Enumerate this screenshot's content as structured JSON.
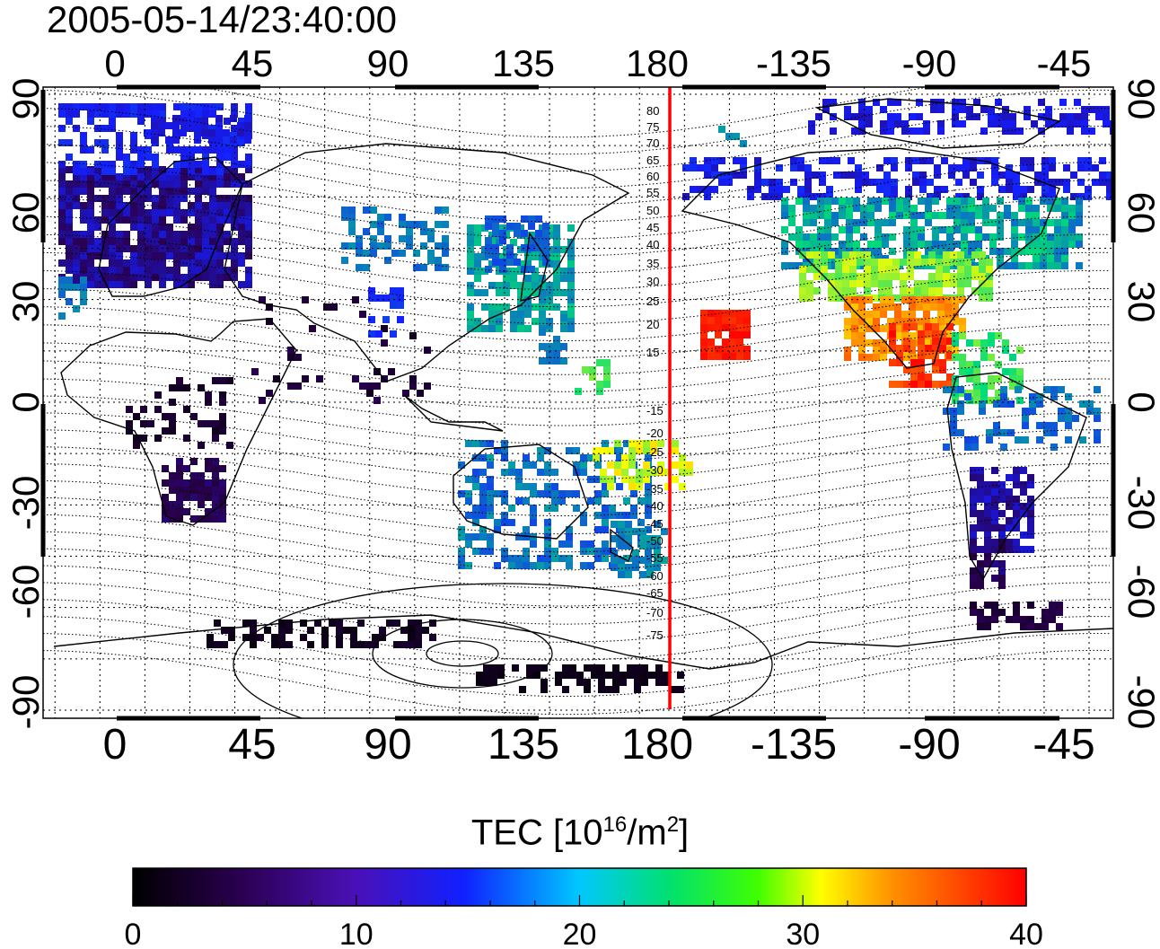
{
  "title": "2005-05-14/23:40:00",
  "map": {
    "lon_ticks": [
      "0",
      "45",
      "90",
      "135",
      "180",
      "-135",
      "-90",
      "-45"
    ],
    "lat_ticks": [
      "90",
      "60",
      "30",
      "0",
      "-30",
      "-60",
      "-90"
    ],
    "magnetic_lat_labels": [
      "80",
      "75",
      "70",
      "65",
      "60",
      "55",
      "50",
      "45",
      "40",
      "35",
      "30",
      "25",
      "20",
      "15",
      "-15",
      "-20",
      "-25",
      "-30",
      "-35",
      "-40",
      "-45",
      "-50",
      "-55",
      "-60",
      "-65",
      "-70",
      "-75"
    ],
    "meridian_line_color": "#ff0000",
    "meridian_longitude": -175
  },
  "colorbar": {
    "label_main": "TEC  [10",
    "label_exp1": "16",
    "label_mid": "/m",
    "label_exp2": "2",
    "label_end": "]",
    "ticks": [
      "0",
      "10",
      "20",
      "30",
      "40"
    ],
    "range": [
      0,
      40
    ]
  }
}
